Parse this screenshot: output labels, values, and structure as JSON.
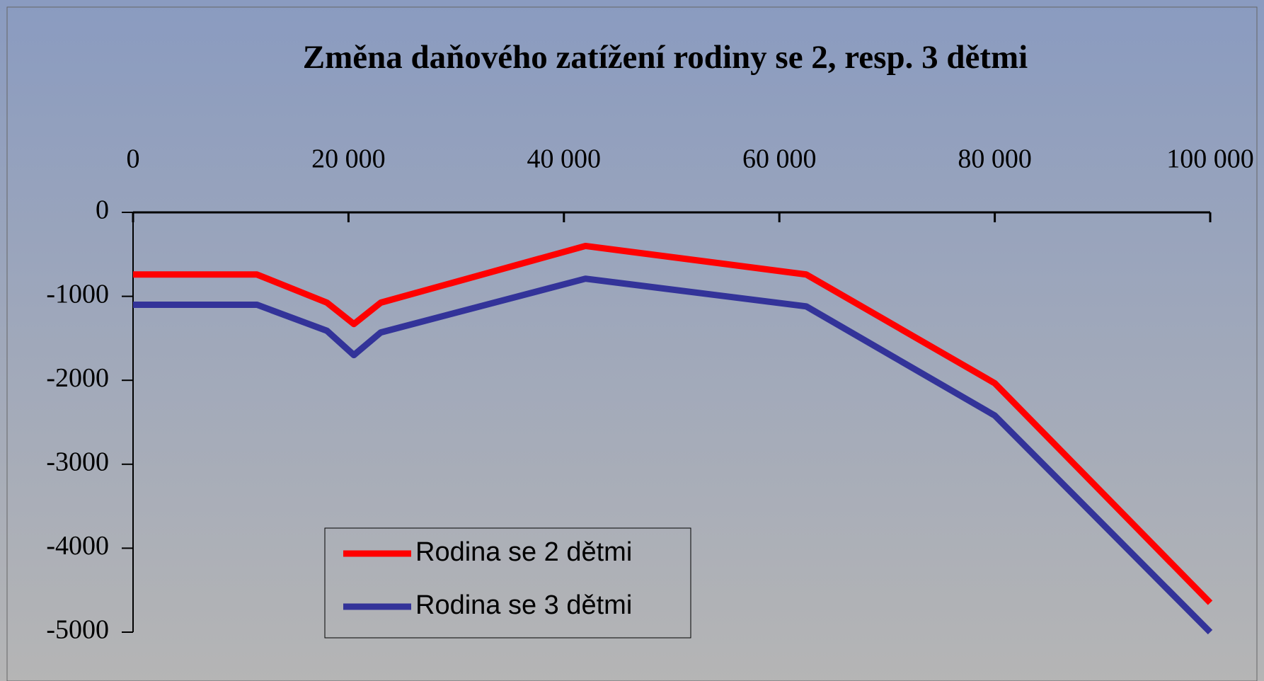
{
  "chart_data": {
    "type": "line",
    "title": "Změna daňového zatížení rodiny se 2, resp. 3 dětmi",
    "x": [
      0,
      11500,
      18000,
      20500,
      23000,
      42000,
      62500,
      80000,
      100000
    ],
    "series": [
      {
        "name": "Rodina se 2 dětmi",
        "color": "#ff0000",
        "values": [
          -740,
          -740,
          -1075,
          -1330,
          -1075,
          -400,
          -740,
          -2035,
          -4650
        ]
      },
      {
        "name": "Rodina se 3 dětmi",
        "color": "#333399",
        "values": [
          -1100,
          -1100,
          -1410,
          -1700,
          -1430,
          -790,
          -1120,
          -2420,
          -5000
        ]
      }
    ],
    "xlim": [
      0,
      100000
    ],
    "xticks": [
      0,
      {
        "value": 20000,
        "label": "20 000"
      },
      {
        "value": 40000,
        "label": "40 000"
      },
      {
        "value": 60000,
        "label": "60 000"
      },
      {
        "value": 80000,
        "label": "80 000"
      },
      {
        "value": 100000,
        "label": "100 000"
      }
    ],
    "ylim": [
      -5000,
      0
    ],
    "yticks": [
      0,
      -1000,
      -2000,
      -3000,
      -4000,
      -5000
    ],
    "legend": "lower-left",
    "grid": false
  }
}
